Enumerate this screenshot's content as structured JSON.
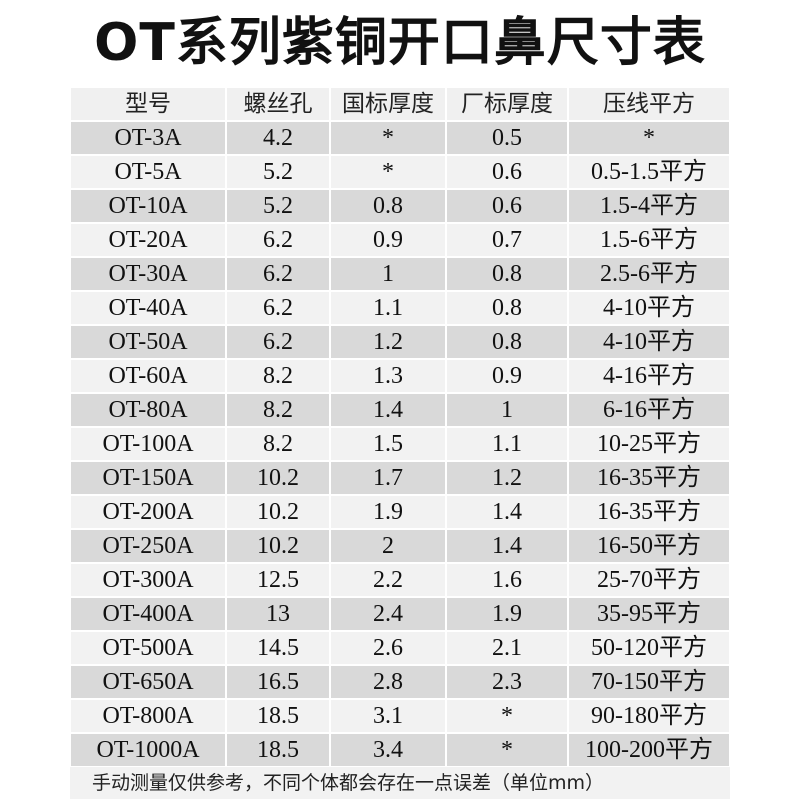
{
  "title": "OT系列紫铜开口鼻尺寸表",
  "columns": [
    "型号",
    "螺丝孔",
    "国标厚度",
    "厂标厚度",
    "压线平方"
  ],
  "rows": [
    [
      "OT-3A",
      "4.2",
      "*",
      "0.5",
      "*"
    ],
    [
      "OT-5A",
      "5.2",
      "*",
      "0.6",
      "0.5-1.5平方"
    ],
    [
      "OT-10A",
      "5.2",
      "0.8",
      "0.6",
      "1.5-4平方"
    ],
    [
      "OT-20A",
      "6.2",
      "0.9",
      "0.7",
      "1.5-6平方"
    ],
    [
      "OT-30A",
      "6.2",
      "1",
      "0.8",
      "2.5-6平方"
    ],
    [
      "OT-40A",
      "6.2",
      "1.1",
      "0.8",
      "4-10平方"
    ],
    [
      "OT-50A",
      "6.2",
      "1.2",
      "0.8",
      "4-10平方"
    ],
    [
      "OT-60A",
      "8.2",
      "1.3",
      "0.9",
      "4-16平方"
    ],
    [
      "OT-80A",
      "8.2",
      "1.4",
      "1",
      "6-16平方"
    ],
    [
      "OT-100A",
      "8.2",
      "1.5",
      "1.1",
      "10-25平方"
    ],
    [
      "OT-150A",
      "10.2",
      "1.7",
      "1.2",
      "16-35平方"
    ],
    [
      "OT-200A",
      "10.2",
      "1.9",
      "1.4",
      "16-35平方"
    ],
    [
      "OT-250A",
      "10.2",
      "2",
      "1.4",
      "16-50平方"
    ],
    [
      "OT-300A",
      "12.5",
      "2.2",
      "1.6",
      "25-70平方"
    ],
    [
      "OT-400A",
      "13",
      "2.4",
      "1.9",
      "35-95平方"
    ],
    [
      "OT-500A",
      "14.5",
      "2.6",
      "2.1",
      "50-120平方"
    ],
    [
      "OT-650A",
      "16.5",
      "2.8",
      "2.3",
      "70-150平方"
    ],
    [
      "OT-800A",
      "18.5",
      "3.1",
      "*",
      "90-180平方"
    ],
    [
      "OT-1000A",
      "18.5",
      "3.4",
      "*",
      "100-200平方"
    ]
  ],
  "footer": "手动测量仅供参考，不同个体都会存在一点误差（单位mm）",
  "colors": {
    "header_bg": "#f0f0f0",
    "row_dark": "#d9d9d9",
    "row_light": "#f2f2f2"
  }
}
